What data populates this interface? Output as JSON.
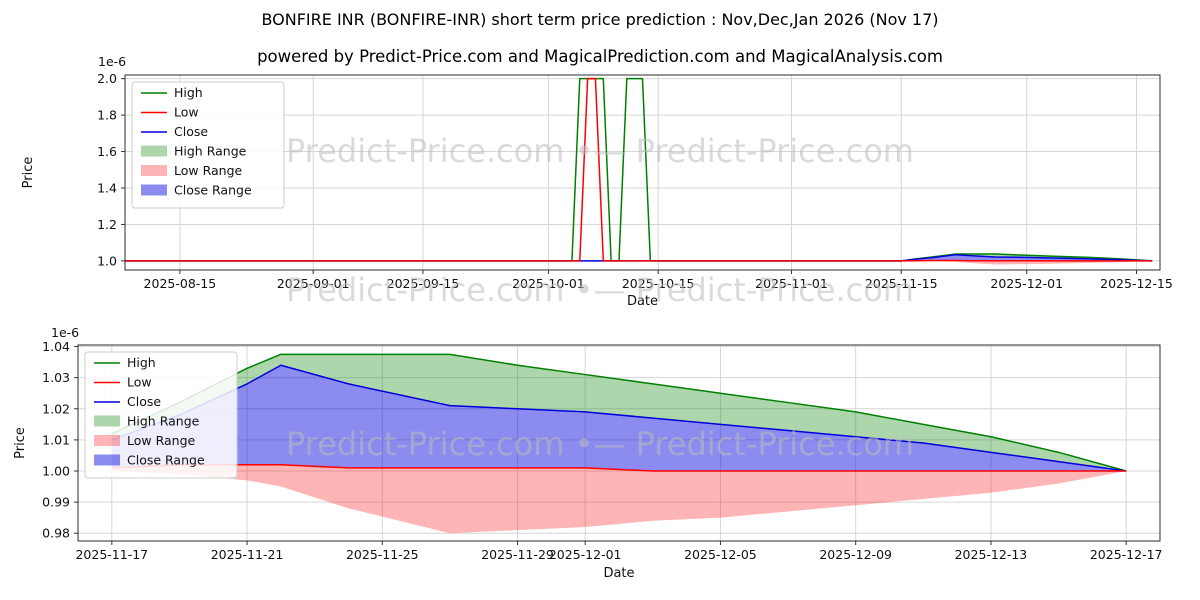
{
  "title": "BONFIRE INR (BONFIRE-INR) short term price prediction : Nov,Dec,Jan 2026 (Nov 17)",
  "subtitle": "powered by Predict-Price.com and MagicalPrediction.com and MagicalAnalysis.com",
  "watermark": "Predict-Price.com   •—   Predict-Price.com",
  "colors": {
    "high": "#008000",
    "low": "#ff0000",
    "close": "#0000dd",
    "high_range": "#008000",
    "low_range": "#ff0000",
    "close_range": "#0000dd",
    "grid": "#d6d6d6",
    "watermark": "#bdbdbd"
  },
  "legend": [
    {
      "label": "High",
      "type": "line",
      "color": "#008000",
      "opacity": 1
    },
    {
      "label": "Low",
      "type": "line",
      "color": "#ff0000",
      "opacity": 1
    },
    {
      "label": "Close",
      "type": "line",
      "color": "#0000dd",
      "opacity": 1
    },
    {
      "label": "High Range",
      "type": "patch",
      "color": "#008000",
      "opacity": 0.32
    },
    {
      "label": "Low Range",
      "type": "patch",
      "color": "#ff0000",
      "opacity": 0.29
    },
    {
      "label": "Close Range",
      "type": "patch",
      "color": "#0000dd",
      "opacity": 0.45
    }
  ],
  "chart_data": [
    {
      "type": "line",
      "xlabel": "Date",
      "ylabel": "Price",
      "offset_label": "1e-6",
      "xlim": [
        "2025-08-08",
        "2025-12-18"
      ],
      "ylim": [
        0.95,
        2.02
      ],
      "yticks": [
        1.0,
        1.2,
        1.4,
        1.6,
        1.8,
        2.0
      ],
      "ytick_labels": [
        "1.0",
        "1.2",
        "1.4",
        "1.6",
        "1.8",
        "2.0"
      ],
      "xticks": [
        "2025-08-15",
        "2025-09-01",
        "2025-09-15",
        "2025-10-01",
        "2025-10-15",
        "2025-11-01",
        "2025-11-15",
        "2025-12-01",
        "2025-12-15"
      ],
      "x": [
        "2025-08-08",
        "2025-09-01",
        "2025-10-01",
        "2025-10-04",
        "2025-10-05",
        "2025-10-06",
        "2025-10-07",
        "2025-10-08",
        "2025-10-09",
        "2025-10-10",
        "2025-10-11",
        "2025-10-12",
        "2025-10-13",
        "2025-10-14",
        "2025-11-01",
        "2025-11-15",
        "2025-11-17",
        "2025-11-19",
        "2025-11-22",
        "2025-11-24",
        "2025-11-27",
        "2025-12-01",
        "2025-12-05",
        "2025-12-09",
        "2025-12-13",
        "2025-12-17"
      ],
      "draw_order": [
        0,
        2,
        1
      ],
      "series": [
        {
          "name": "High",
          "color": "#008000",
          "values": [
            1,
            1,
            1,
            1,
            2,
            2,
            2,
            2,
            1,
            1,
            2,
            2,
            2,
            1,
            1,
            1,
            1.012,
            1.022,
            1.0375,
            1.0375,
            1.0375,
            1.031,
            1.025,
            1.019,
            1.011,
            1.0
          ]
        },
        {
          "name": "Low",
          "color": "#ff0000",
          "values": [
            1,
            1,
            1,
            1,
            1,
            2,
            2,
            1,
            1,
            1,
            1,
            1,
            1,
            1,
            1,
            1,
            1.001,
            1.002,
            1.002,
            1.001,
            1.001,
            1.001,
            1.0,
            1.0,
            1.0,
            1.0
          ]
        },
        {
          "name": "Close",
          "color": "#0000dd",
          "values": [
            1,
            1,
            1,
            1,
            1,
            1,
            1,
            1,
            1,
            1,
            1,
            1,
            1,
            1,
            1,
            1,
            1.01,
            1.018,
            1.034,
            1.028,
            1.021,
            1.019,
            1.015,
            1.011,
            1.006,
            1.0
          ]
        }
      ],
      "bands": [
        {
          "name": "High Range",
          "color": "#008000",
          "opacity": 0.32,
          "top": [
            1,
            1,
            1,
            1,
            1,
            1,
            1,
            1,
            1,
            1,
            1,
            1,
            1,
            1,
            1,
            1,
            1.012,
            1.022,
            1.0375,
            1.0375,
            1.0375,
            1.031,
            1.025,
            1.019,
            1.011,
            1.0
          ],
          "bottom": [
            1,
            1,
            1,
            1,
            1,
            1,
            1,
            1,
            1,
            1,
            1,
            1,
            1,
            1,
            1,
            1,
            1.01,
            1.018,
            1.034,
            1.028,
            1.021,
            1.019,
            1.015,
            1.011,
            1.006,
            1.0
          ]
        },
        {
          "name": "Low Range",
          "color": "#ff0000",
          "opacity": 0.29,
          "top": [
            1,
            1,
            1,
            1,
            1,
            1,
            1,
            1,
            1,
            1,
            1,
            1,
            1,
            1,
            1,
            1,
            1.001,
            1.002,
            1.002,
            1.001,
            1.001,
            1.001,
            1.0,
            1.0,
            1.0,
            1.0
          ],
          "bottom": [
            1,
            1,
            1,
            1,
            1,
            1,
            1,
            1,
            1,
            1,
            1,
            1,
            1,
            1,
            1,
            1,
            1.0,
            0.999,
            0.995,
            0.988,
            0.98,
            0.982,
            0.985,
            0.989,
            0.993,
            1.0
          ]
        },
        {
          "name": "Close Range",
          "color": "#0000dd",
          "opacity": 0.45,
          "top": [
            1,
            1,
            1,
            1,
            1,
            1,
            1,
            1,
            1,
            1,
            1,
            1,
            1,
            1,
            1,
            1,
            1.01,
            1.018,
            1.034,
            1.028,
            1.021,
            1.019,
            1.015,
            1.011,
            1.006,
            1.0
          ],
          "bottom": [
            1,
            1,
            1,
            1,
            1,
            1,
            1,
            1,
            1,
            1,
            1,
            1,
            1,
            1,
            1,
            1,
            1.001,
            1.002,
            1.002,
            1.001,
            1.001,
            1.001,
            1.0,
            1.0,
            1.0,
            1.0
          ]
        }
      ]
    },
    {
      "type": "line",
      "xlabel": "Date",
      "ylabel": "Price",
      "offset_label": "1e-6",
      "xlim": [
        "2025-11-16",
        "2025-12-18"
      ],
      "ylim": [
        0.9775,
        1.0405
      ],
      "yticks": [
        0.98,
        0.99,
        1.0,
        1.01,
        1.02,
        1.03,
        1.04
      ],
      "ytick_labels": [
        "0.98",
        "0.99",
        "1.00",
        "1.01",
        "1.02",
        "1.03",
        "1.04"
      ],
      "xticks": [
        "2025-11-17",
        "2025-11-21",
        "2025-11-25",
        "2025-11-29",
        "2025-12-01",
        "2025-12-05",
        "2025-12-09",
        "2025-12-13",
        "2025-12-17"
      ],
      "x": [
        "2025-11-17",
        "2025-11-19",
        "2025-11-21",
        "2025-11-22",
        "2025-11-24",
        "2025-11-27",
        "2025-11-29",
        "2025-12-01",
        "2025-12-03",
        "2025-12-05",
        "2025-12-07",
        "2025-12-09",
        "2025-12-11",
        "2025-12-13",
        "2025-12-15",
        "2025-12-17"
      ],
      "draw_order": [
        0,
        2,
        1
      ],
      "series": [
        {
          "name": "High",
          "color": "#008000",
          "values": [
            1.012,
            1.022,
            1.033,
            1.0375,
            1.0375,
            1.0375,
            1.034,
            1.031,
            1.028,
            1.025,
            1.022,
            1.019,
            1.015,
            1.011,
            1.006,
            1.0
          ]
        },
        {
          "name": "Low",
          "color": "#ff0000",
          "values": [
            1.001,
            1.002,
            1.002,
            1.002,
            1.001,
            1.001,
            1.001,
            1.001,
            1.0,
            1.0,
            1.0,
            1.0,
            1.0,
            1.0,
            1.0,
            1.0
          ]
        },
        {
          "name": "Close",
          "color": "#0000dd",
          "values": [
            1.01,
            1.018,
            1.028,
            1.034,
            1.028,
            1.021,
            1.02,
            1.019,
            1.017,
            1.015,
            1.013,
            1.011,
            1.009,
            1.006,
            1.003,
            1.0
          ]
        }
      ],
      "bands": [
        {
          "name": "High Range",
          "color": "#008000",
          "opacity": 0.32,
          "top": [
            1.012,
            1.022,
            1.033,
            1.0375,
            1.0375,
            1.0375,
            1.034,
            1.031,
            1.028,
            1.025,
            1.022,
            1.019,
            1.015,
            1.011,
            1.006,
            1.0
          ],
          "bottom": [
            1.01,
            1.018,
            1.028,
            1.034,
            1.028,
            1.021,
            1.02,
            1.019,
            1.017,
            1.015,
            1.013,
            1.011,
            1.009,
            1.006,
            1.003,
            1.0
          ]
        },
        {
          "name": "Low Range",
          "color": "#ff0000",
          "opacity": 0.29,
          "top": [
            1.001,
            1.002,
            1.002,
            1.002,
            1.001,
            1.001,
            1.001,
            1.001,
            1.0,
            1.0,
            1.0,
            1.0,
            1.0,
            1.0,
            1.0,
            1.0
          ],
          "bottom": [
            1.0,
            0.999,
            0.997,
            0.995,
            0.988,
            0.98,
            0.981,
            0.982,
            0.984,
            0.985,
            0.987,
            0.989,
            0.991,
            0.993,
            0.996,
            1.0
          ]
        },
        {
          "name": "Close Range",
          "color": "#0000dd",
          "opacity": 0.45,
          "top": [
            1.01,
            1.018,
            1.028,
            1.034,
            1.028,
            1.021,
            1.02,
            1.019,
            1.017,
            1.015,
            1.013,
            1.011,
            1.009,
            1.006,
            1.003,
            1.0
          ],
          "bottom": [
            1.001,
            1.002,
            1.002,
            1.002,
            1.001,
            1.001,
            1.001,
            1.001,
            1.0,
            1.0,
            1.0,
            1.0,
            1.0,
            1.0,
            1.0,
            1.0
          ]
        }
      ]
    }
  ]
}
